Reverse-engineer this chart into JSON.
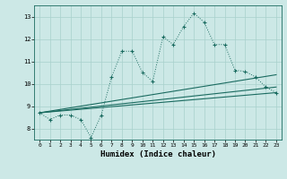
{
  "xlabel": "Humidex (Indice chaleur)",
  "bg_color": "#cce8e6",
  "grid_color": "#a8d0cc",
  "line_color": "#1a6b60",
  "x_data": [
    0,
    1,
    2,
    3,
    4,
    5,
    6,
    7,
    8,
    9,
    10,
    11,
    12,
    13,
    14,
    15,
    16,
    17,
    18,
    19,
    20,
    21,
    22,
    23
  ],
  "y_main": [
    8.7,
    8.4,
    8.6,
    8.6,
    8.4,
    7.6,
    8.6,
    10.3,
    11.45,
    11.45,
    10.5,
    10.1,
    12.1,
    11.75,
    12.55,
    13.15,
    12.75,
    11.75,
    11.75,
    10.6,
    10.55,
    10.3,
    9.85,
    9.6
  ],
  "ylim": [
    7.5,
    13.5
  ],
  "xlim": [
    -0.5,
    23.5
  ],
  "yticks": [
    8,
    9,
    10,
    11,
    12,
    13
  ],
  "xticks": [
    0,
    1,
    2,
    3,
    4,
    5,
    6,
    7,
    8,
    9,
    10,
    11,
    12,
    13,
    14,
    15,
    16,
    17,
    18,
    19,
    20,
    21,
    22,
    23
  ],
  "trend_lines": [
    {
      "x": [
        0,
        23
      ],
      "y": [
        8.7,
        9.6
      ]
    },
    {
      "x": [
        0,
        23
      ],
      "y": [
        8.7,
        9.85
      ]
    },
    {
      "x": [
        0,
        23
      ],
      "y": [
        8.7,
        10.4
      ]
    }
  ]
}
